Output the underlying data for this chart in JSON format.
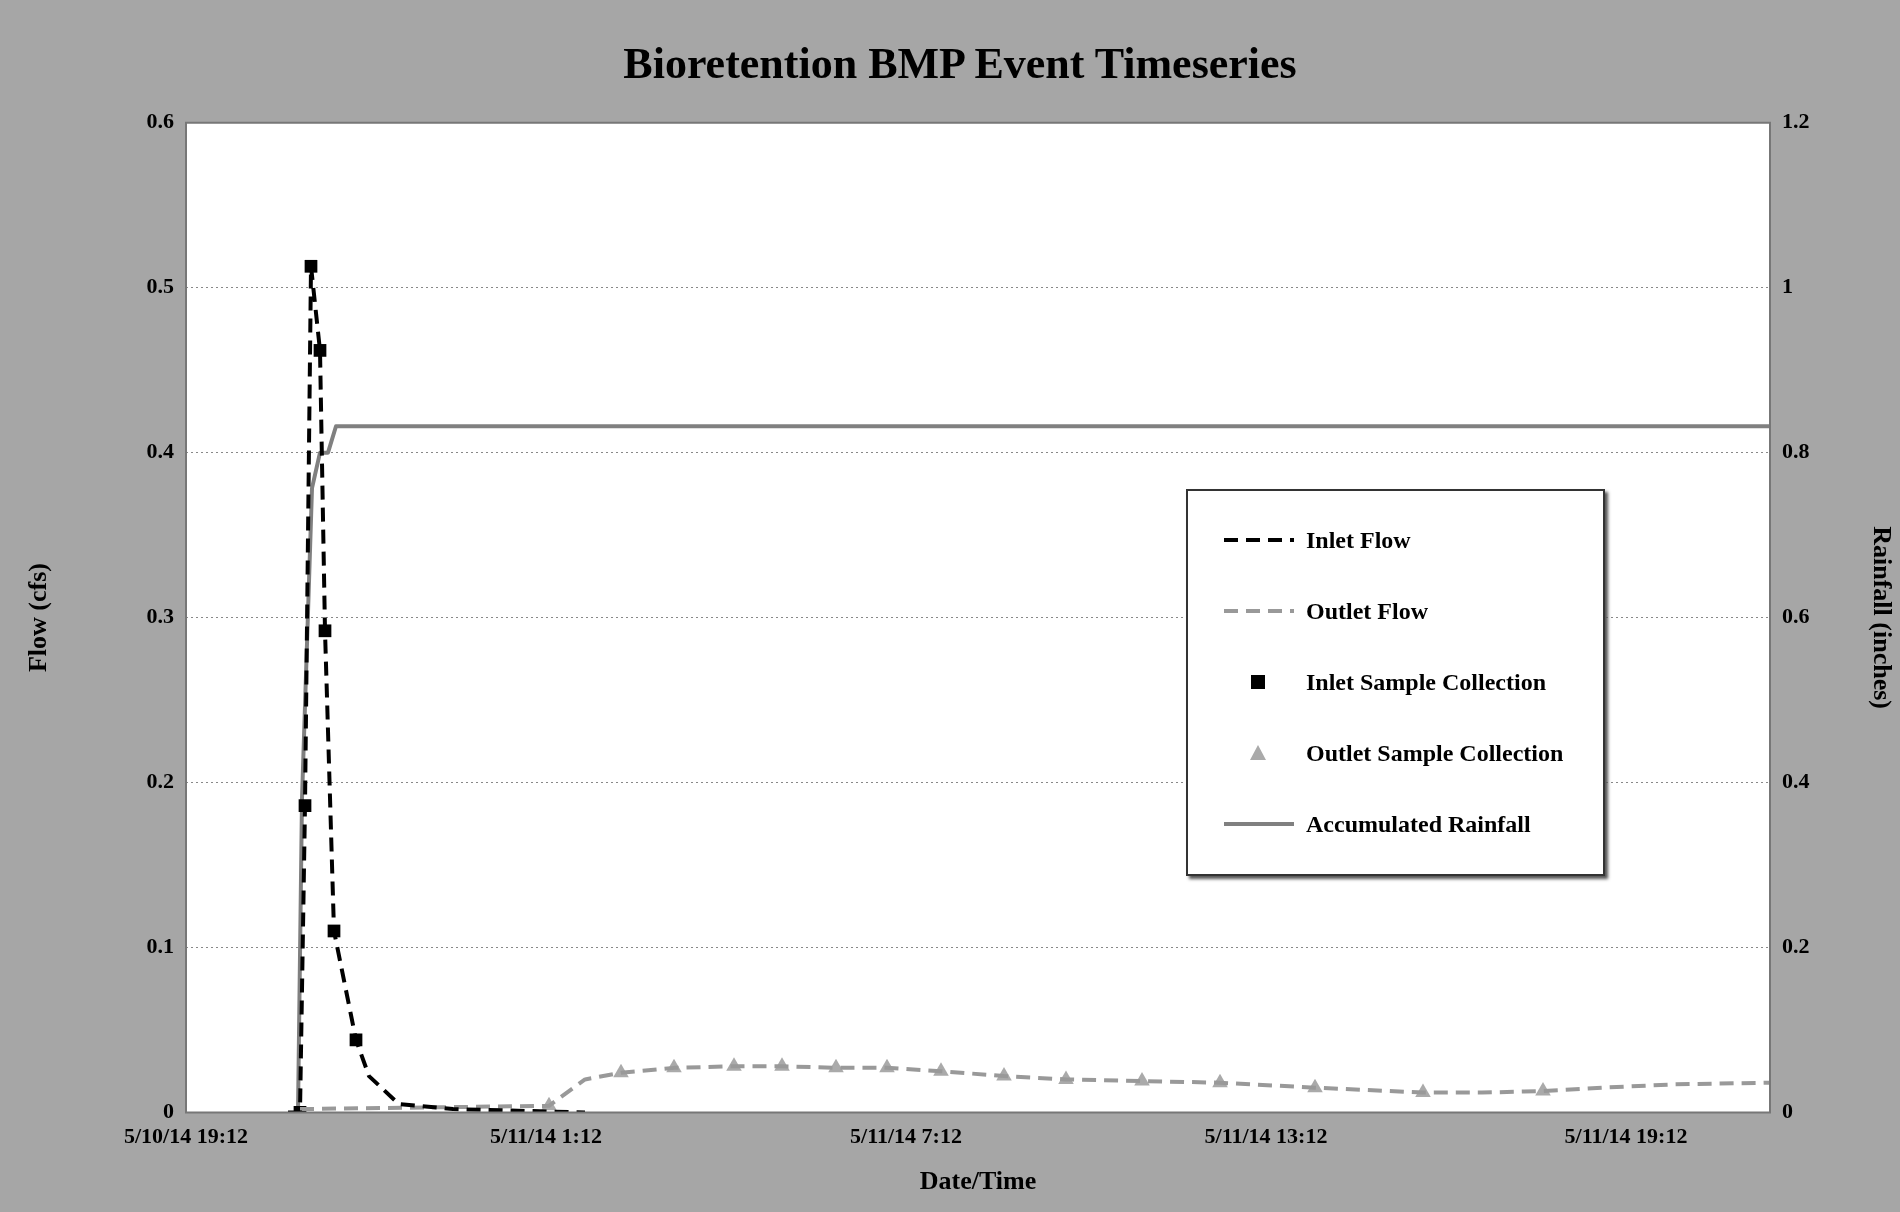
{
  "chart_data": {
    "type": "line",
    "title": "Bioretention BMP Event Timeseries",
    "xlabel": "Date/Time",
    "ylabel": "Flow (cfs)",
    "y2label": "Rainfall (inches)",
    "xlim": [
      "--05-10T19:12",
      "--05-11T21:36"
    ],
    "xticks": [
      {
        "value": "--05-10T19:12",
        "label": "5/10/14 19:12"
      },
      {
        "value": "--05-11T01:12",
        "label": "5/11/14 1:12"
      },
      {
        "value": "--05-11T07:12",
        "label": "5/11/14 7:12"
      },
      {
        "value": "--05-11T13:12",
        "label": "5/11/14 13:12"
      },
      {
        "value": "--05-11T19:12",
        "label": "5/11/14 19:12"
      }
    ],
    "ylim": [
      0,
      0.6
    ],
    "yticks": [
      0,
      0.1,
      0.2,
      0.3,
      0.4,
      0.5,
      0.6
    ],
    "y2lim": [
      0,
      1.2
    ],
    "y2ticks": [
      0,
      0.2,
      0.4,
      0.6,
      0.8,
      1,
      1.2
    ],
    "grid": "y",
    "legend": "right",
    "series": [
      {
        "name": "Inlet Flow",
        "type": "line",
        "color": "#000000",
        "line_style": "dashed",
        "marker": "none",
        "x": [
          "--05-10T20:54",
          "--05-10T21:06",
          "--05-10T21:11",
          "--05-10T21:17",
          "--05-10T21:26",
          "--05-10T21:31",
          "--05-10T21:40",
          "--05-10T22:02",
          "--05-10T22:15",
          "--05-10T22:45",
          "--05-10T23:39",
          "--05-11T01:51"
        ],
        "values": [
          0,
          0,
          0.186,
          0.513,
          0.462,
          0.292,
          0.11,
          0.044,
          0.022,
          0.005,
          0.002,
          0
        ]
      },
      {
        "name": "Outlet Flow",
        "type": "line",
        "color": "#999999",
        "line_style": "dashed",
        "marker": "none",
        "x": [
          "--05-10T21:06",
          "--05-11T01:15",
          "--05-11T01:51",
          "--05-11T02:27",
          "--05-11T03:20",
          "--05-11T04:20",
          "--05-11T05:08",
          "--05-11T06:02",
          "--05-11T06:53",
          "--05-11T07:47",
          "--05-11T08:50",
          "--05-11T09:52",
          "--05-11T11:08",
          "--05-11T12:26",
          "--05-11T14:01",
          "--05-11T15:49",
          "--05-11T16:48",
          "--05-11T17:49",
          "--05-11T18:48",
          "--05-11T20:00",
          "--05-11T21:36"
        ],
        "values": [
          0.002,
          0.004,
          0.02,
          0.024,
          0.027,
          0.028,
          0.028,
          0.027,
          0.027,
          0.025,
          0.022,
          0.02,
          0.019,
          0.018,
          0.015,
          0.012,
          0.012,
          0.013,
          0.015,
          0.017,
          0.018
        ]
      },
      {
        "name": "Inlet Sample Collection",
        "type": "scatter",
        "color": "#000000",
        "marker": "square",
        "x": [
          "--05-10T21:06",
          "--05-10T21:11",
          "--05-10T21:17",
          "--05-10T21:26",
          "--05-10T21:31",
          "--05-10T21:40",
          "--05-10T22:02"
        ],
        "values": [
          0,
          0.186,
          0.513,
          0.462,
          0.292,
          0.11,
          0.044
        ]
      },
      {
        "name": "Outlet Sample Collection",
        "type": "scatter",
        "color": "#aaaaaa",
        "marker": "triangle",
        "x": [
          "--05-11T01:15",
          "--05-11T02:27",
          "--05-11T03:20",
          "--05-11T04:20",
          "--05-11T05:08",
          "--05-11T06:02",
          "--05-11T06:53",
          "--05-11T07:47",
          "--05-11T08:50",
          "--05-11T09:52",
          "--05-11T11:08",
          "--05-11T12:26",
          "--05-11T14:01",
          "--05-11T15:49",
          "--05-11T17:49"
        ],
        "values": [
          0.004,
          0.024,
          0.027,
          0.028,
          0.028,
          0.027,
          0.027,
          0.025,
          0.022,
          0.02,
          0.019,
          0.018,
          0.015,
          0.012,
          0.013
        ]
      },
      {
        "name": "Accumulated Rainfall",
        "type": "line",
        "color": "#808080",
        "line_style": "solid",
        "marker": "none",
        "axis": "y2",
        "x": [
          "--05-10T21:04",
          "--05-10T21:08",
          "--05-10T21:18",
          "--05-10T21:26",
          "--05-10T21:34",
          "--05-10T21:42",
          "--05-11T21:36"
        ],
        "values": [
          0,
          0.38,
          0.757,
          0.8,
          0.8,
          0.832,
          0.832
        ]
      }
    ]
  }
}
